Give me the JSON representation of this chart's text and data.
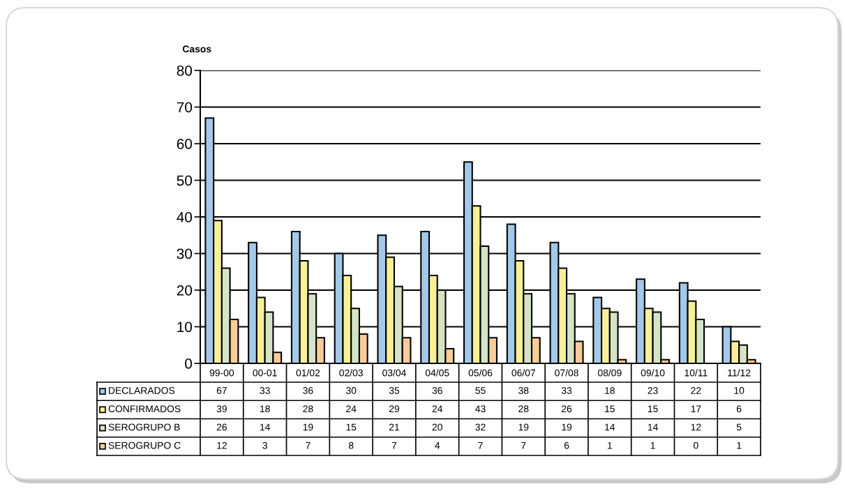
{
  "chart_data": {
    "type": "bar",
    "ylabel": "Casos",
    "categories": [
      "99-00",
      "00-01",
      "01/02",
      "02/03",
      "03/04",
      "04/05",
      "05/06",
      "06/07",
      "07/08",
      "08/09",
      "09/10",
      "10/11",
      "11/12"
    ],
    "series": [
      {
        "name": "DECLARADOS",
        "color": "#a4c8e8",
        "values": [
          67,
          33,
          36,
          30,
          35,
          36,
          55,
          38,
          33,
          18,
          23,
          22,
          10
        ]
      },
      {
        "name": "CONFIRMADOS",
        "color": "#f8f098",
        "values": [
          39,
          18,
          28,
          24,
          29,
          24,
          43,
          28,
          26,
          15,
          15,
          17,
          6
        ]
      },
      {
        "name": "SEROGRUPO B",
        "color": "#d4e4c4",
        "values": [
          26,
          14,
          19,
          15,
          21,
          20,
          32,
          19,
          19,
          14,
          14,
          12,
          5
        ]
      },
      {
        "name": "SEROGRUPO C",
        "color": "#f8cc98",
        "values": [
          12,
          3,
          7,
          8,
          7,
          4,
          7,
          7,
          6,
          1,
          1,
          0,
          1
        ]
      }
    ],
    "ylim": [
      0,
      80
    ],
    "yticks": [
      0,
      10,
      20,
      30,
      40,
      50,
      60,
      70,
      80
    ],
    "grid": "y",
    "legend": "bottom left",
    "data_labels": true
  }
}
